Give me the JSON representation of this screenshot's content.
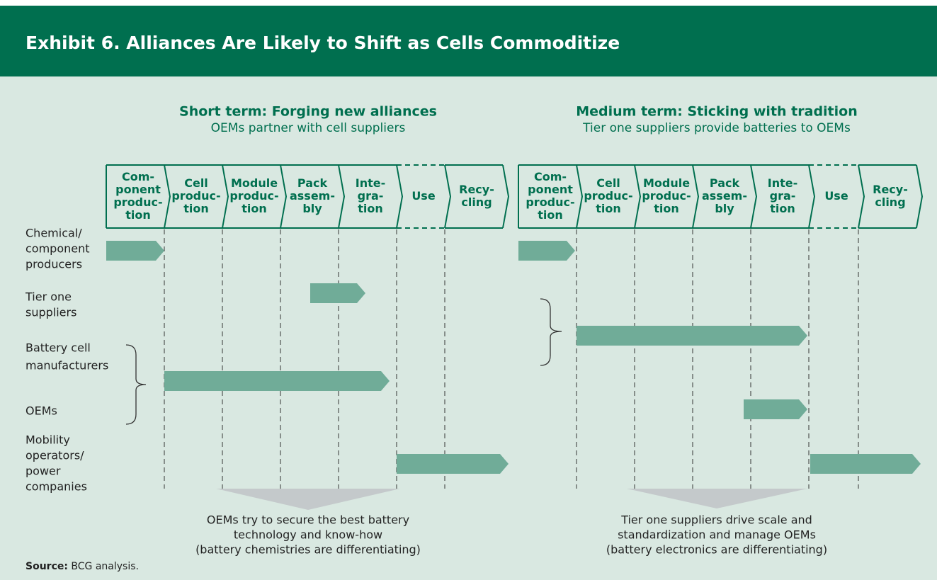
{
  "header": {
    "title": "Exhibit 6. Alliances Are Likely to Shift as Cells Commoditize"
  },
  "panels": [
    {
      "title": "Short term: Forging new alliances",
      "subtitle": "OEMs partner with cell suppliers",
      "note": [
        "OEMs try to secure the best battery",
        "technology and know-how",
        "(battery chemistries are differentiating)"
      ]
    },
    {
      "title": "Medium term: Sticking with tradition",
      "subtitle": "Tier one suppliers provide batteries to OEMs",
      "note": [
        "Tier one suppliers drive scale and",
        "standardization and manage OEMs",
        "(battery electronics are differentiating)"
      ]
    }
  ],
  "stages": [
    [
      "Com-",
      "ponent",
      "produc-",
      "tion"
    ],
    [
      "Cell",
      "produc-",
      "tion"
    ],
    [
      "Module",
      "produc-",
      "tion"
    ],
    [
      "Pack",
      "assem-",
      "bly"
    ],
    [
      "Inte-",
      "gra-",
      "tion"
    ],
    [
      "Use"
    ],
    [
      "Recy-",
      "cling"
    ]
  ],
  "actors": [
    [
      "Chemical/",
      "component",
      "producers"
    ],
    [
      "Tier one",
      "suppliers"
    ],
    [
      "Battery cell",
      "manufacturers"
    ],
    [
      "OEMs"
    ],
    [
      "Mobility",
      "operators/",
      "power",
      "companies"
    ]
  ],
  "source": {
    "label": "Source:",
    "text": "BCG analysis."
  }
}
